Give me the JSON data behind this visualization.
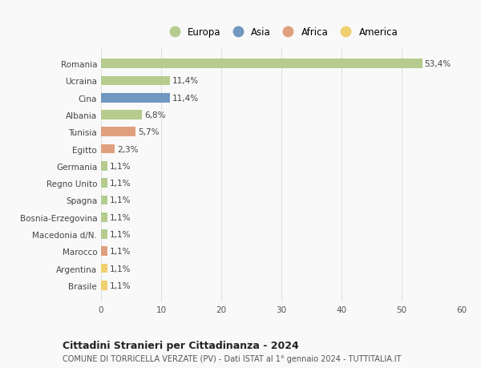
{
  "categories": [
    "Romania",
    "Ucraina",
    "Cina",
    "Albania",
    "Tunisia",
    "Egitto",
    "Germania",
    "Regno Unito",
    "Spagna",
    "Bosnia-Erzegovina",
    "Macedonia d/N.",
    "Marocco",
    "Argentina",
    "Brasile"
  ],
  "values": [
    53.4,
    11.4,
    11.4,
    6.8,
    5.7,
    2.3,
    1.1,
    1.1,
    1.1,
    1.1,
    1.1,
    1.1,
    1.1,
    1.1
  ],
  "labels": [
    "53,4%",
    "11,4%",
    "11,4%",
    "6,8%",
    "5,7%",
    "2,3%",
    "1,1%",
    "1,1%",
    "1,1%",
    "1,1%",
    "1,1%",
    "1,1%",
    "1,1%",
    "1,1%"
  ],
  "continents": [
    "Europa",
    "Europa",
    "Asia",
    "Europa",
    "Africa",
    "Africa",
    "Europa",
    "Europa",
    "Europa",
    "Europa",
    "Europa",
    "Africa",
    "America",
    "America"
  ],
  "continent_colors": {
    "Europa": "#b5cc8e",
    "Asia": "#7098c0",
    "Africa": "#e0a080",
    "America": "#f0d070"
  },
  "legend_order": [
    "Europa",
    "Asia",
    "Africa",
    "America"
  ],
  "xlim": [
    0,
    60
  ],
  "xticks": [
    0,
    10,
    20,
    30,
    40,
    50,
    60
  ],
  "title": "Cittadini Stranieri per Cittadinanza - 2024",
  "subtitle": "COMUNE DI TORRICELLA VERZATE (PV) - Dati ISTAT al 1° gennaio 2024 - TUTTITALIA.IT",
  "background_color": "#f9f9f9",
  "grid_color": "#e0e0e0",
  "bar_height": 0.55,
  "label_fontsize": 7.5,
  "tick_fontsize": 7.5,
  "legend_fontsize": 8.5,
  "title_fontsize": 9,
  "subtitle_fontsize": 7
}
